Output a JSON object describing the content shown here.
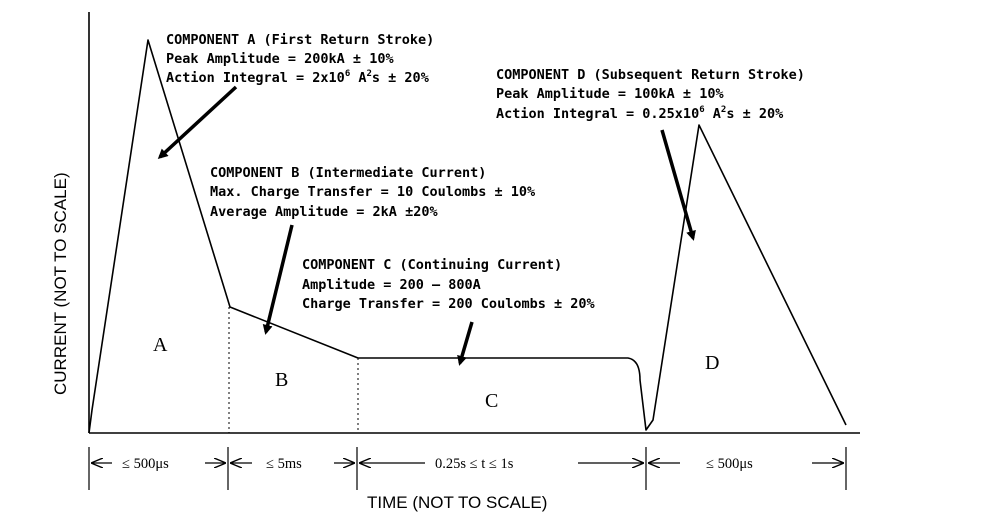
{
  "diagram": {
    "y_axis_label": "CURRENT (NOT TO SCALE)",
    "x_axis_label": "TIME (NOT TO SCALE)",
    "regions": {
      "a": "A",
      "b": "B",
      "c": "C",
      "d": "D"
    },
    "durations": [
      "≤ 500μs",
      "≤ 5ms",
      "0.25s ≤ t ≤ 1s",
      "≤ 500μs"
    ],
    "component_a": {
      "title": "COMPONENT A (First Return Stroke)",
      "peak": "Peak Amplitude = 200kA ± 10%",
      "action_prefix": "Action Integral = 2x10",
      "action_exp": "6",
      "action_mid": " A",
      "action_sq": "2",
      "action_suffix": "s ± 20%"
    },
    "component_b": {
      "title": "COMPONENT B (Intermediate Current)",
      "charge": "Max. Charge Transfer = 10 Coulombs ± 10%",
      "average": "Average Amplitude = 2kA ±20%"
    },
    "component_c": {
      "title": "COMPONENT C (Continuing Current)",
      "amplitude": "Amplitude = 200 – 800A",
      "charge": "Charge Transfer = 200 Coulombs ± 20%"
    },
    "component_d": {
      "title": "COMPONENT D (Subsequent Return Stroke)",
      "peak": "Peak Amplitude = 100kA ± 10%",
      "action_prefix": "Action Integral = 0.25x10",
      "action_exp": "6",
      "action_mid": " A",
      "action_sq": "2",
      "action_suffix": "s ± 20%"
    }
  }
}
